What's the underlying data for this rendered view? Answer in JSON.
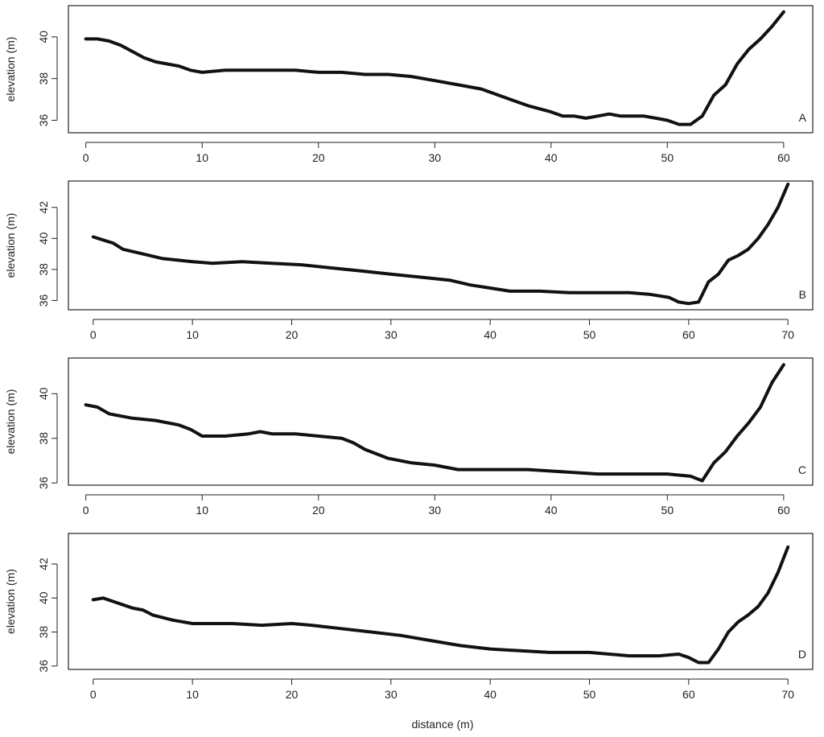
{
  "colors": {
    "line": "#111111",
    "axis": "#222222",
    "background": "#ffffff"
  },
  "chart_data": [
    {
      "type": "scatter",
      "panel_label": "A",
      "xlabel": "",
      "ylabel": "elevation (m)",
      "xlim": [
        -1.5,
        62.5
      ],
      "ylim": [
        35.4,
        41.5
      ],
      "xticks": [
        0,
        10,
        20,
        30,
        40,
        50,
        60
      ],
      "yticks": [
        36,
        38,
        40
      ],
      "x": [
        0,
        1,
        2,
        3,
        4,
        5,
        6,
        7,
        8,
        9,
        10,
        12,
        14,
        16,
        18,
        20,
        22,
        24,
        26,
        28,
        30,
        32,
        34,
        36,
        38,
        40,
        41,
        42,
        43,
        44,
        45,
        46,
        47,
        48,
        49,
        50,
        51,
        52,
        53,
        54,
        55,
        56,
        57,
        58,
        59,
        60
      ],
      "y": [
        39.9,
        39.9,
        39.8,
        39.6,
        39.3,
        39.0,
        38.8,
        38.7,
        38.6,
        38.4,
        38.3,
        38.4,
        38.4,
        38.4,
        38.4,
        38.3,
        38.3,
        38.2,
        38.2,
        38.1,
        37.9,
        37.7,
        37.5,
        37.1,
        36.7,
        36.4,
        36.2,
        36.2,
        36.1,
        36.2,
        36.3,
        36.2,
        36.2,
        36.2,
        36.1,
        36.0,
        35.8,
        35.8,
        36.2,
        37.2,
        37.7,
        38.7,
        39.4,
        39.9,
        40.5,
        41.2
      ]
    },
    {
      "type": "scatter",
      "panel_label": "B",
      "xlabel": "",
      "ylabel": "elevation (m)",
      "xlim": [
        -2.5,
        72.5
      ],
      "ylim": [
        35.4,
        43.7
      ],
      "xticks": [
        0,
        10,
        20,
        30,
        40,
        50,
        60,
        70
      ],
      "yticks": [
        36,
        38,
        40,
        42
      ],
      "x": [
        0,
        1,
        2,
        3,
        5,
        7,
        10,
        12,
        15,
        18,
        21,
        24,
        27,
        30,
        33,
        36,
        38,
        40,
        42,
        45,
        48,
        51,
        54,
        56,
        58,
        59,
        60,
        61,
        62,
        63,
        64,
        65,
        66,
        67,
        68,
        69,
        70
      ],
      "y": [
        40.1,
        39.9,
        39.7,
        39.3,
        39.0,
        38.7,
        38.5,
        38.4,
        38.5,
        38.4,
        38.3,
        38.1,
        37.9,
        37.7,
        37.5,
        37.3,
        37.0,
        36.8,
        36.6,
        36.6,
        36.5,
        36.5,
        36.5,
        36.4,
        36.2,
        35.9,
        35.8,
        35.9,
        37.2,
        37.7,
        38.6,
        38.9,
        39.3,
        40.0,
        40.9,
        42.0,
        43.5
      ]
    },
    {
      "type": "scatter",
      "panel_label": "C",
      "xlabel": "",
      "ylabel": "elevation (m)",
      "xlim": [
        -1.5,
        62.5
      ],
      "ylim": [
        35.9,
        41.6
      ],
      "xticks": [
        0,
        10,
        20,
        30,
        40,
        50,
        60
      ],
      "yticks": [
        36,
        38,
        40
      ],
      "x": [
        0,
        1,
        2,
        4,
        6,
        8,
        9,
        10,
        12,
        14,
        15,
        16,
        18,
        20,
        22,
        23,
        24,
        26,
        28,
        30,
        32,
        35,
        38,
        41,
        44,
        47,
        50,
        52,
        53,
        54,
        55,
        56,
        57,
        58,
        59,
        60
      ],
      "y": [
        39.5,
        39.4,
        39.1,
        38.9,
        38.8,
        38.6,
        38.4,
        38.1,
        38.1,
        38.2,
        38.3,
        38.2,
        38.2,
        38.1,
        38.0,
        37.8,
        37.5,
        37.1,
        36.9,
        36.8,
        36.6,
        36.6,
        36.6,
        36.5,
        36.4,
        36.4,
        36.4,
        36.3,
        36.1,
        36.9,
        37.4,
        38.1,
        38.7,
        39.4,
        40.5,
        41.3
      ]
    },
    {
      "type": "scatter",
      "panel_label": "D",
      "xlabel": "distance (m)",
      "ylabel": "elevation (m)",
      "xlim": [
        -2.5,
        72.5
      ],
      "ylim": [
        35.8,
        43.8
      ],
      "xticks": [
        0,
        10,
        20,
        30,
        40,
        50,
        60,
        70
      ],
      "yticks": [
        36,
        38,
        40,
        42
      ],
      "x": [
        0,
        1,
        2,
        3,
        4,
        5,
        6,
        8,
        10,
        14,
        17,
        20,
        22,
        25,
        28,
        31,
        34,
        37,
        40,
        43,
        46,
        50,
        54,
        57,
        59,
        60,
        61,
        62,
        63,
        64,
        65,
        66,
        67,
        68,
        69,
        70
      ],
      "y": [
        39.9,
        40.0,
        39.8,
        39.6,
        39.4,
        39.3,
        39.0,
        38.7,
        38.5,
        38.5,
        38.4,
        38.5,
        38.4,
        38.2,
        38.0,
        37.8,
        37.5,
        37.2,
        37.0,
        36.9,
        36.8,
        36.8,
        36.6,
        36.6,
        36.7,
        36.5,
        36.2,
        36.2,
        37.0,
        38.0,
        38.6,
        39.0,
        39.5,
        40.3,
        41.5,
        43.0
      ]
    }
  ]
}
